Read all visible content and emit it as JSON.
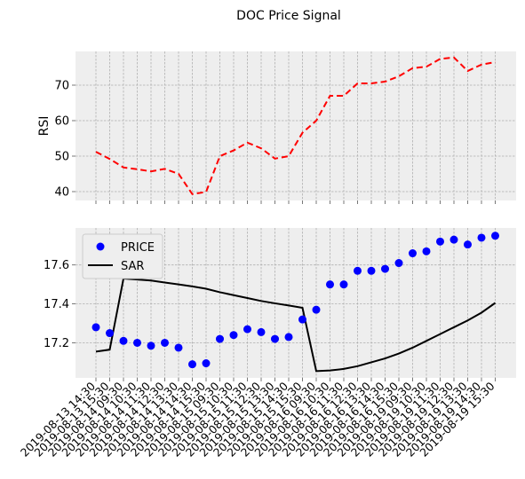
{
  "figure": {
    "title": "DOC Price Signal"
  },
  "chart_data": [
    {
      "type": "line",
      "ylabel": "RSI",
      "ylim": [
        37.5,
        79.5
      ],
      "yticks": [
        40,
        50,
        60,
        70
      ],
      "grid": true,
      "series": [
        {
          "color": "#ff0000",
          "dash": "dashed",
          "values": [
            51.2,
            49.2,
            46.8,
            46.3,
            45.7,
            46.4,
            45.0,
            39.3,
            39.9,
            50.0,
            51.6,
            53.8,
            52.2,
            49.3,
            50.0,
            56.6,
            60.0,
            67.0,
            67.0,
            70.5,
            70.5,
            71.0,
            72.5,
            74.8,
            75.2,
            77.4,
            77.8,
            74.0,
            75.8,
            76.5
          ]
        }
      ]
    },
    {
      "type": "scatter+line",
      "ylim": [
        17.02,
        17.79
      ],
      "yticks": [
        17.2,
        17.4,
        17.6
      ],
      "grid": true,
      "legend_position": "top-left",
      "x": [
        "2019-08-13 14:30",
        "2019-08-13 15:30",
        "2019-08-14 09:30",
        "2019-08-14 10:30",
        "2019-08-14 11:30",
        "2019-08-14 12:30",
        "2019-08-14 13:30",
        "2019-08-14 14:30",
        "2019-08-14 15:30",
        "2019-08-15 09:30",
        "2019-08-15 10:30",
        "2019-08-15 11:30",
        "2019-08-15 12:30",
        "2019-08-15 13:30",
        "2019-08-15 14:30",
        "2019-08-15 15:30",
        "2019-08-16 09:30",
        "2019-08-16 10:30",
        "2019-08-16 11:30",
        "2019-08-16 12:30",
        "2019-08-16 13:30",
        "2019-08-16 14:30",
        "2019-08-16 15:30",
        "2019-08-19 09:30",
        "2019-08-19 10:30",
        "2019-08-19 11:30",
        "2019-08-19 12:30",
        "2019-08-19 13:30",
        "2019-08-19 14:30",
        "2019-08-19 15:30"
      ],
      "series": [
        {
          "name": "PRICE",
          "kind": "scatter",
          "color": "#0000ff",
          "values": [
            17.28,
            17.25,
            17.21,
            17.2,
            17.185,
            17.2,
            17.175,
            17.09,
            17.095,
            17.22,
            17.24,
            17.27,
            17.255,
            17.22,
            17.23,
            17.32,
            17.37,
            17.5,
            17.5,
            17.57,
            17.57,
            17.58,
            17.61,
            17.66,
            17.67,
            17.72,
            17.73,
            17.705,
            17.74,
            17.75
          ]
        },
        {
          "name": "SAR",
          "kind": "line",
          "color": "#000000",
          "values": [
            17.155,
            17.165,
            17.53,
            17.525,
            17.52,
            17.51,
            17.5,
            17.49,
            17.478,
            17.46,
            17.445,
            17.43,
            17.415,
            17.403,
            17.392,
            17.38,
            17.055,
            17.058,
            17.066,
            17.08,
            17.1,
            17.12,
            17.145,
            17.175,
            17.21,
            17.245,
            17.28,
            17.315,
            17.355,
            17.405
          ]
        }
      ]
    }
  ]
}
